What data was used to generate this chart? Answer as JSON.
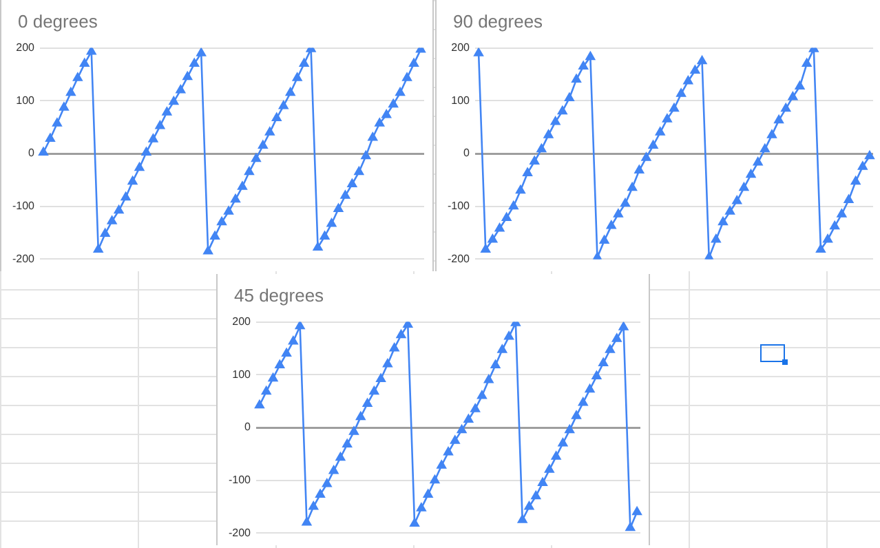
{
  "chart_data": [
    {
      "type": "line",
      "title": "0 degrees",
      "categories": [
        null,
        null,
        null,
        null,
        null,
        null,
        null,
        null,
        null,
        null,
        null,
        null,
        null,
        null,
        null,
        null,
        null,
        null,
        null,
        null,
        null,
        null,
        null,
        null,
        null,
        null,
        null,
        null,
        null,
        null,
        null,
        null,
        null,
        null,
        null,
        null,
        null,
        null,
        null,
        null,
        null,
        null,
        null,
        null,
        null,
        null,
        null,
        null,
        null,
        null,
        null,
        null,
        null,
        null,
        null,
        null
      ],
      "series": [
        {
          "color": "#4285f4",
          "values": [
            2,
            28,
            57,
            87,
            115,
            143,
            170,
            193,
            -182,
            -152,
            -128,
            -108,
            -83,
            -53,
            -27,
            2,
            27,
            52,
            78,
            98,
            120,
            145,
            170,
            190,
            -185,
            -157,
            -130,
            -110,
            -87,
            -63,
            -35,
            -10,
            15,
            40,
            67,
            90,
            115,
            143,
            170,
            198,
            -178,
            -157,
            -133,
            -105,
            -80,
            -58,
            -35,
            -5,
            30,
            57,
            73,
            93,
            115,
            143,
            170,
            197
          ]
        }
      ],
      "ylim": [
        -200,
        200
      ],
      "yticks": [
        -200,
        -100,
        0,
        100,
        200
      ],
      "grid": "y",
      "legend": false,
      "marker": "triangle",
      "tick_labels": "y"
    },
    {
      "type": "line",
      "title": "90 degrees",
      "categories": [
        null,
        null,
        null,
        null,
        null,
        null,
        null,
        null,
        null,
        null,
        null,
        null,
        null,
        null,
        null,
        null,
        null,
        null,
        null,
        null,
        null,
        null,
        null,
        null,
        null,
        null,
        null,
        null,
        null,
        null,
        null,
        null,
        null,
        null,
        null,
        null,
        null,
        null,
        null,
        null,
        null,
        null,
        null,
        null,
        null,
        null,
        null,
        null,
        null,
        null,
        null,
        null,
        null,
        null,
        null,
        null,
        null
      ],
      "series": [
        {
          "color": "#4285f4",
          "values": [
            190,
            -182,
            -163,
            -142,
            -122,
            -100,
            -70,
            -37,
            -15,
            8,
            35,
            60,
            80,
            105,
            140,
            165,
            183,
            -197,
            -165,
            -137,
            -115,
            -95,
            -65,
            -32,
            -8,
            15,
            40,
            65,
            85,
            113,
            137,
            157,
            175,
            -197,
            -163,
            -130,
            -110,
            -90,
            -65,
            -40,
            -17,
            8,
            35,
            63,
            85,
            107,
            127,
            170,
            198,
            -182,
            -163,
            -138,
            -115,
            -88,
            -53,
            -25,
            -5
          ]
        }
      ],
      "ylim": [
        -200,
        200
      ],
      "yticks": [
        -200,
        -100,
        0,
        100,
        200
      ],
      "grid": "y",
      "legend": false,
      "marker": "triangle",
      "tick_labels": "y"
    },
    {
      "type": "line",
      "title": "45 degrees",
      "categories": [
        null,
        null,
        null,
        null,
        null,
        null,
        null,
        null,
        null,
        null,
        null,
        null,
        null,
        null,
        null,
        null,
        null,
        null,
        null,
        null,
        null,
        null,
        null,
        null,
        null,
        null,
        null,
        null,
        null,
        null,
        null,
        null,
        null,
        null,
        null,
        null,
        null,
        null,
        null,
        null,
        null,
        null,
        null,
        null,
        null,
        null,
        null,
        null,
        null,
        null,
        null,
        null,
        null,
        null,
        null,
        null,
        null
      ],
      "series": [
        {
          "color": "#4285f4",
          "values": [
            42,
            68,
            93,
            118,
            140,
            163,
            192,
            -180,
            -150,
            -127,
            -107,
            -82,
            -57,
            -32,
            -8,
            20,
            45,
            68,
            92,
            120,
            150,
            175,
            195,
            -182,
            -153,
            -127,
            -100,
            -72,
            -47,
            -25,
            -5,
            15,
            35,
            60,
            90,
            118,
            147,
            172,
            198,
            -175,
            -150,
            -130,
            -105,
            -80,
            -55,
            -30,
            -5,
            22,
            47,
            72,
            97,
            122,
            147,
            168,
            190,
            -190,
            -160
          ]
        }
      ],
      "ylim": [
        -200,
        200
      ],
      "yticks": [
        -200,
        -100,
        0,
        100,
        200
      ],
      "grid": "y",
      "legend": false,
      "marker": "triangle",
      "tick_labels": "y"
    }
  ]
}
